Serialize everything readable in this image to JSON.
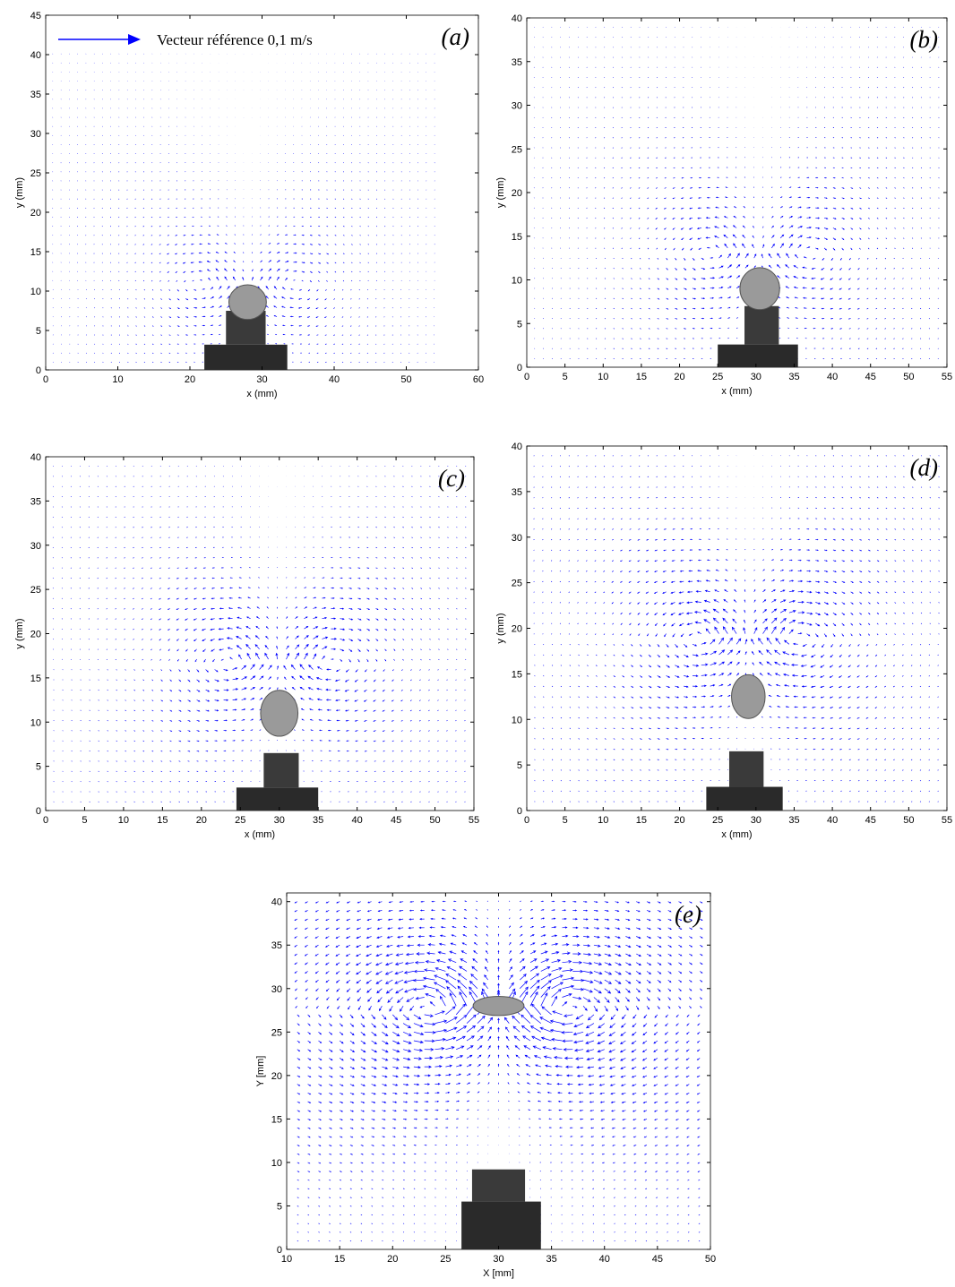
{
  "chart_data": [
    {
      "type": "quiver",
      "title": "(a)",
      "annotation": "Vecteur référence 0,1 m/s",
      "x_label": "x (mm)",
      "y_label": "y (mm)",
      "xlim": [
        0,
        60
      ],
      "ylim": [
        0,
        45
      ],
      "xticks": [
        0,
        10,
        20,
        30,
        40,
        50,
        60
      ],
      "yticks": [
        0,
        5,
        10,
        15,
        20,
        25,
        30,
        35,
        40,
        45
      ],
      "color": "#0000ff"
    },
    {
      "type": "quiver",
      "title": "(b)",
      "x_label": "x (mm)",
      "y_label": "y (mm)",
      "xlim": [
        0,
        55
      ],
      "ylim": [
        0,
        40
      ],
      "xticks": [
        0,
        5,
        10,
        15,
        20,
        25,
        30,
        35,
        40,
        45,
        50,
        55
      ],
      "yticks": [
        0,
        5,
        10,
        15,
        20,
        25,
        30,
        35,
        40
      ],
      "color": "#0000ff"
    },
    {
      "type": "quiver",
      "title": "(c)",
      "x_label": "x (mm)",
      "y_label": "y (mm)",
      "xlim": [
        0,
        55
      ],
      "ylim": [
        0,
        40
      ],
      "xticks": [
        0,
        5,
        10,
        15,
        20,
        25,
        30,
        35,
        40,
        45,
        50,
        55
      ],
      "yticks": [
        0,
        5,
        10,
        15,
        20,
        25,
        30,
        35,
        40
      ],
      "color": "#0000ff"
    },
    {
      "type": "quiver",
      "title": "(d)",
      "x_label": "x (mm)",
      "y_label": "y (mm)",
      "xlim": [
        0,
        55
      ],
      "ylim": [
        0,
        40
      ],
      "xticks": [
        0,
        5,
        10,
        15,
        20,
        25,
        30,
        35,
        40,
        45,
        50,
        55
      ],
      "yticks": [
        0,
        5,
        10,
        15,
        20,
        25,
        30,
        35,
        40
      ],
      "color": "#0000ff"
    },
    {
      "type": "quiver",
      "title": "(e)",
      "x_label": "X [mm]",
      "y_label": "Y [mm]",
      "xlim": [
        10,
        50
      ],
      "ylim": [
        0,
        41
      ],
      "xticks": [
        10,
        15,
        20,
        25,
        30,
        35,
        40,
        45,
        50
      ],
      "yticks": [
        0,
        5,
        10,
        15,
        20,
        25,
        30,
        35,
        40
      ],
      "color": "#0000ff"
    }
  ]
}
